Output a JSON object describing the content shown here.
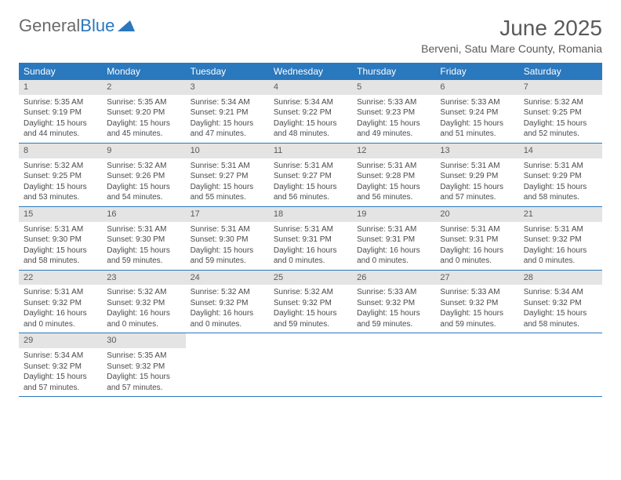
{
  "logo": {
    "text1": "General",
    "text2": "Blue"
  },
  "title": "June 2025",
  "location": "Berveni, Satu Mare County, Romania",
  "weekday_header_bg": "#2a78bd",
  "weekday_header_fg": "#ffffff",
  "day_number_bg": "#e4e4e4",
  "weekdays": [
    "Sunday",
    "Monday",
    "Tuesday",
    "Wednesday",
    "Thursday",
    "Friday",
    "Saturday"
  ],
  "weeks": [
    [
      {
        "n": "1",
        "sunrise": "Sunrise: 5:35 AM",
        "sunset": "Sunset: 9:19 PM",
        "daylight": "Daylight: 15 hours and 44 minutes."
      },
      {
        "n": "2",
        "sunrise": "Sunrise: 5:35 AM",
        "sunset": "Sunset: 9:20 PM",
        "daylight": "Daylight: 15 hours and 45 minutes."
      },
      {
        "n": "3",
        "sunrise": "Sunrise: 5:34 AM",
        "sunset": "Sunset: 9:21 PM",
        "daylight": "Daylight: 15 hours and 47 minutes."
      },
      {
        "n": "4",
        "sunrise": "Sunrise: 5:34 AM",
        "sunset": "Sunset: 9:22 PM",
        "daylight": "Daylight: 15 hours and 48 minutes."
      },
      {
        "n": "5",
        "sunrise": "Sunrise: 5:33 AM",
        "sunset": "Sunset: 9:23 PM",
        "daylight": "Daylight: 15 hours and 49 minutes."
      },
      {
        "n": "6",
        "sunrise": "Sunrise: 5:33 AM",
        "sunset": "Sunset: 9:24 PM",
        "daylight": "Daylight: 15 hours and 51 minutes."
      },
      {
        "n": "7",
        "sunrise": "Sunrise: 5:32 AM",
        "sunset": "Sunset: 9:25 PM",
        "daylight": "Daylight: 15 hours and 52 minutes."
      }
    ],
    [
      {
        "n": "8",
        "sunrise": "Sunrise: 5:32 AM",
        "sunset": "Sunset: 9:25 PM",
        "daylight": "Daylight: 15 hours and 53 minutes."
      },
      {
        "n": "9",
        "sunrise": "Sunrise: 5:32 AM",
        "sunset": "Sunset: 9:26 PM",
        "daylight": "Daylight: 15 hours and 54 minutes."
      },
      {
        "n": "10",
        "sunrise": "Sunrise: 5:31 AM",
        "sunset": "Sunset: 9:27 PM",
        "daylight": "Daylight: 15 hours and 55 minutes."
      },
      {
        "n": "11",
        "sunrise": "Sunrise: 5:31 AM",
        "sunset": "Sunset: 9:27 PM",
        "daylight": "Daylight: 15 hours and 56 minutes."
      },
      {
        "n": "12",
        "sunrise": "Sunrise: 5:31 AM",
        "sunset": "Sunset: 9:28 PM",
        "daylight": "Daylight: 15 hours and 56 minutes."
      },
      {
        "n": "13",
        "sunrise": "Sunrise: 5:31 AM",
        "sunset": "Sunset: 9:29 PM",
        "daylight": "Daylight: 15 hours and 57 minutes."
      },
      {
        "n": "14",
        "sunrise": "Sunrise: 5:31 AM",
        "sunset": "Sunset: 9:29 PM",
        "daylight": "Daylight: 15 hours and 58 minutes."
      }
    ],
    [
      {
        "n": "15",
        "sunrise": "Sunrise: 5:31 AM",
        "sunset": "Sunset: 9:30 PM",
        "daylight": "Daylight: 15 hours and 58 minutes."
      },
      {
        "n": "16",
        "sunrise": "Sunrise: 5:31 AM",
        "sunset": "Sunset: 9:30 PM",
        "daylight": "Daylight: 15 hours and 59 minutes."
      },
      {
        "n": "17",
        "sunrise": "Sunrise: 5:31 AM",
        "sunset": "Sunset: 9:30 PM",
        "daylight": "Daylight: 15 hours and 59 minutes."
      },
      {
        "n": "18",
        "sunrise": "Sunrise: 5:31 AM",
        "sunset": "Sunset: 9:31 PM",
        "daylight": "Daylight: 16 hours and 0 minutes."
      },
      {
        "n": "19",
        "sunrise": "Sunrise: 5:31 AM",
        "sunset": "Sunset: 9:31 PM",
        "daylight": "Daylight: 16 hours and 0 minutes."
      },
      {
        "n": "20",
        "sunrise": "Sunrise: 5:31 AM",
        "sunset": "Sunset: 9:31 PM",
        "daylight": "Daylight: 16 hours and 0 minutes."
      },
      {
        "n": "21",
        "sunrise": "Sunrise: 5:31 AM",
        "sunset": "Sunset: 9:32 PM",
        "daylight": "Daylight: 16 hours and 0 minutes."
      }
    ],
    [
      {
        "n": "22",
        "sunrise": "Sunrise: 5:31 AM",
        "sunset": "Sunset: 9:32 PM",
        "daylight": "Daylight: 16 hours and 0 minutes."
      },
      {
        "n": "23",
        "sunrise": "Sunrise: 5:32 AM",
        "sunset": "Sunset: 9:32 PM",
        "daylight": "Daylight: 16 hours and 0 minutes."
      },
      {
        "n": "24",
        "sunrise": "Sunrise: 5:32 AM",
        "sunset": "Sunset: 9:32 PM",
        "daylight": "Daylight: 16 hours and 0 minutes."
      },
      {
        "n": "25",
        "sunrise": "Sunrise: 5:32 AM",
        "sunset": "Sunset: 9:32 PM",
        "daylight": "Daylight: 15 hours and 59 minutes."
      },
      {
        "n": "26",
        "sunrise": "Sunrise: 5:33 AM",
        "sunset": "Sunset: 9:32 PM",
        "daylight": "Daylight: 15 hours and 59 minutes."
      },
      {
        "n": "27",
        "sunrise": "Sunrise: 5:33 AM",
        "sunset": "Sunset: 9:32 PM",
        "daylight": "Daylight: 15 hours and 59 minutes."
      },
      {
        "n": "28",
        "sunrise": "Sunrise: 5:34 AM",
        "sunset": "Sunset: 9:32 PM",
        "daylight": "Daylight: 15 hours and 58 minutes."
      }
    ],
    [
      {
        "n": "29",
        "sunrise": "Sunrise: 5:34 AM",
        "sunset": "Sunset: 9:32 PM",
        "daylight": "Daylight: 15 hours and 57 minutes."
      },
      {
        "n": "30",
        "sunrise": "Sunrise: 5:35 AM",
        "sunset": "Sunset: 9:32 PM",
        "daylight": "Daylight: 15 hours and 57 minutes."
      },
      null,
      null,
      null,
      null,
      null
    ]
  ]
}
